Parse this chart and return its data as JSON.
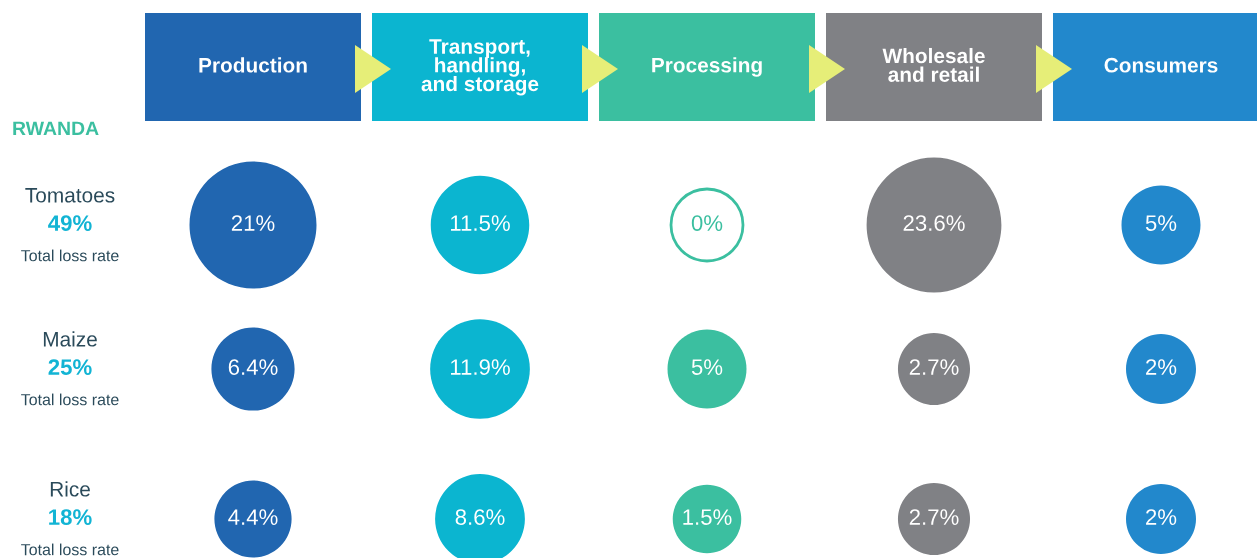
{
  "chart_data": {
    "type": "other",
    "title": "RWANDA",
    "categories": [
      "Production",
      "Transport,\nhandling,\nand storage",
      "Processing",
      "Wholesale\nand retail",
      "Consumers"
    ],
    "colors": [
      "#2166b0",
      "#0bb5d0",
      "#3bbfa0",
      "#808185",
      "#2288cc"
    ],
    "series": [
      {
        "colors": [
          "#2166b0",
          "#0bb5d0",
          "#3bbfa0",
          "#808185",
          "#2288cc"
        ],
        "values": [
          21,
          11.5,
          0,
          23.6,
          5
        ],
        "value_labels": [
          "21%",
          "11.5%",
          "0%",
          "23.6%",
          "5%"
        ]
      },
      {
        "colors": [
          "#2166b0",
          "#0bb5d0",
          "#3bbfa0",
          "#808185",
          "#2288cc"
        ],
        "values": [
          6.4,
          11.9,
          5,
          2.7,
          2
        ],
        "value_labels": [
          "6.4%",
          "11.9%",
          "5%",
          "2.7%",
          "2%"
        ]
      },
      {
        "colors": [
          "#2166b0",
          "#0bb5d0",
          "#3bbfa0",
          "#808185",
          "#2288cc"
        ],
        "values": [
          4.4,
          8.6,
          1.5,
          2.7,
          2
        ],
        "value_labels": [
          "4.4%",
          "8.6%",
          "1.5%",
          "2.7%",
          "2%"
        ]
      }
    ],
    "y_categories": [
      "Tomatoes",
      "Maize",
      "Rice"
    ],
    "annotations": [
      "49%",
      "Total loss rate",
      "25%",
      "Total loss rate",
      "18%",
      "Total loss rate"
    ]
  }
}
